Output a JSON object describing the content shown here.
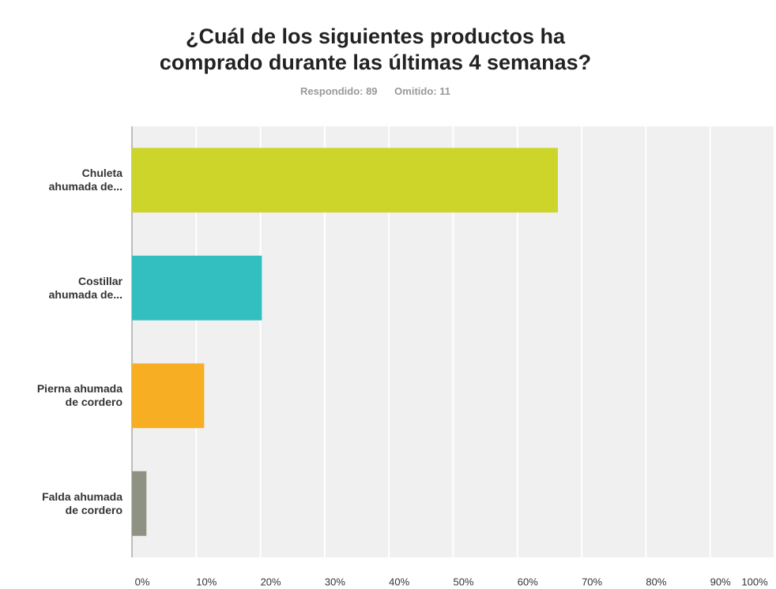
{
  "chart_data": {
    "type": "bar",
    "orientation": "horizontal",
    "title": "¿Cuál de los siguientes productos ha\ncomprado durante las últimas 4 semanas?",
    "subtitle": [
      "Respondido: 89",
      "Omitido: 11"
    ],
    "categories": [
      "Chuleta\nahumada de...",
      "Costillar\nahumada de...",
      "Pierna ahumada\nde cordero",
      "Falda ahumada\nde cordero"
    ],
    "values": [
      66.29,
      20.22,
      11.24,
      2.25
    ],
    "colors": [
      "#cdd52b",
      "#33bfbf",
      "#f7ae23",
      "#8e9282"
    ],
    "xlim": [
      0,
      100
    ],
    "xticks": [
      {
        "value": 0,
        "label": "0%"
      },
      {
        "value": 10,
        "label": "10%"
      },
      {
        "value": 20,
        "label": "20%"
      },
      {
        "value": 30,
        "label": "30%"
      },
      {
        "value": 40,
        "label": "40%"
      },
      {
        "value": 50,
        "label": "50%"
      },
      {
        "value": 60,
        "label": "60%"
      },
      {
        "value": 70,
        "label": "70%"
      },
      {
        "value": 80,
        "label": "80%"
      },
      {
        "value": 90,
        "label": "90%"
      },
      {
        "value": 100,
        "label": "100%"
      }
    ],
    "grid": true
  }
}
